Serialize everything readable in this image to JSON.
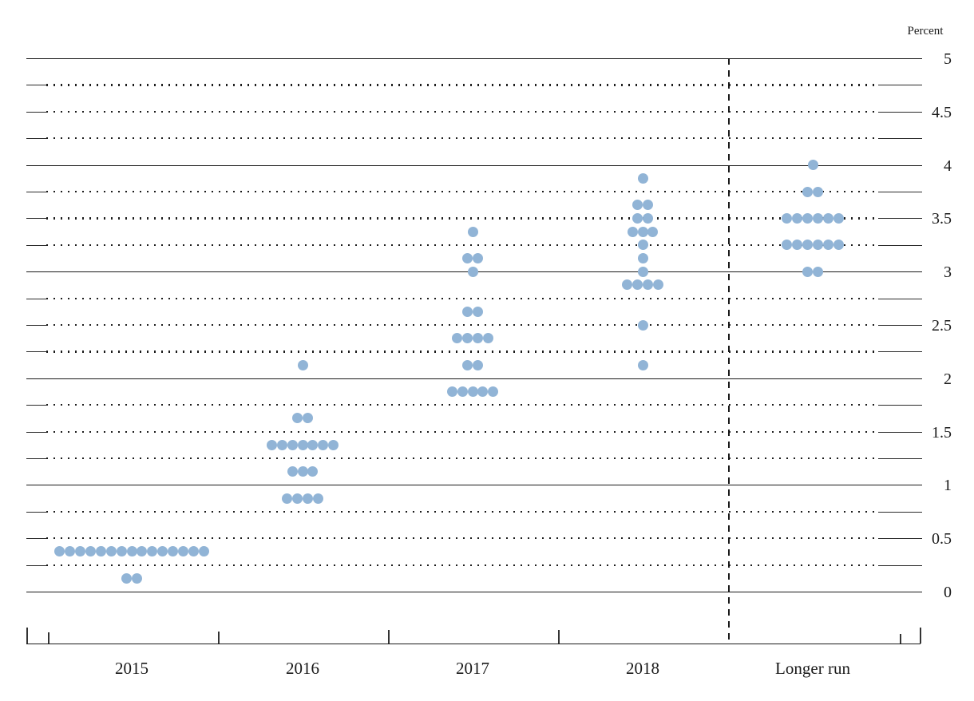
{
  "chart_data": {
    "type": "scatter",
    "subtype": "fomc-dot-plot",
    "title": "",
    "unit_label": "Percent",
    "xlabel": "",
    "ylabel": "Percent",
    "ylim": [
      0,
      5
    ],
    "grid_step": 0.25,
    "grid_on": true,
    "y_axis_tick_labels": [
      "5",
      "4.5",
      "4",
      "3.5",
      "3",
      "2.5",
      "2",
      "1.5",
      "1",
      "0.5",
      "0"
    ],
    "categories": [
      "2015",
      "2016",
      "2017",
      "2018",
      "Longer run"
    ],
    "separator_before_category": "Longer run",
    "dot_color": "#91b4d6",
    "line_color": "#1a1a1a",
    "series": [
      {
        "category": "2015",
        "dots": [
          {
            "rate": 0.375,
            "count": 15
          },
          {
            "rate": 0.125,
            "count": 2
          }
        ]
      },
      {
        "category": "2016",
        "dots": [
          {
            "rate": 2.125,
            "count": 1
          },
          {
            "rate": 1.625,
            "count": 2
          },
          {
            "rate": 1.375,
            "count": 7
          },
          {
            "rate": 1.125,
            "count": 3
          },
          {
            "rate": 0.875,
            "count": 4
          }
        ]
      },
      {
        "category": "2017",
        "dots": [
          {
            "rate": 3.375,
            "count": 1
          },
          {
            "rate": 3.125,
            "count": 2
          },
          {
            "rate": 3.0,
            "count": 1
          },
          {
            "rate": 2.625,
            "count": 2
          },
          {
            "rate": 2.375,
            "count": 4
          },
          {
            "rate": 2.125,
            "count": 2
          },
          {
            "rate": 1.875,
            "count": 5
          }
        ]
      },
      {
        "category": "2018",
        "dots": [
          {
            "rate": 3.875,
            "count": 1
          },
          {
            "rate": 3.625,
            "count": 2
          },
          {
            "rate": 3.5,
            "count": 2
          },
          {
            "rate": 3.375,
            "count": 3
          },
          {
            "rate": 3.25,
            "count": 1
          },
          {
            "rate": 3.125,
            "count": 1
          },
          {
            "rate": 3.0,
            "count": 1
          },
          {
            "rate": 2.875,
            "count": 4
          },
          {
            "rate": 2.5,
            "count": 1
          },
          {
            "rate": 2.125,
            "count": 1
          }
        ]
      },
      {
        "category": "Longer run",
        "dots": [
          {
            "rate": 4.0,
            "count": 1
          },
          {
            "rate": 3.75,
            "count": 2
          },
          {
            "rate": 3.5,
            "count": 6
          },
          {
            "rate": 3.25,
            "count": 6
          },
          {
            "rate": 3.0,
            "count": 2
          }
        ]
      }
    ]
  }
}
